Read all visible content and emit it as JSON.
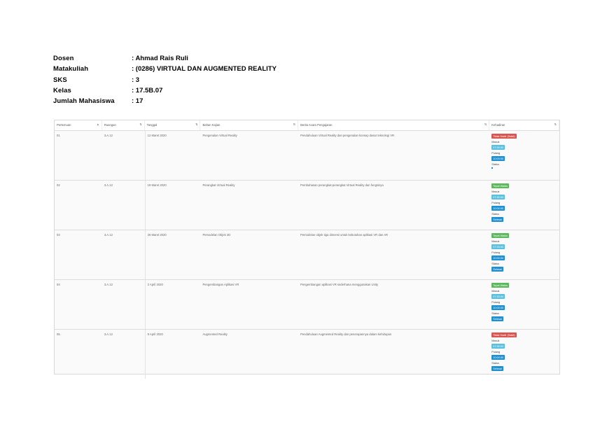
{
  "info": [
    {
      "label": "Dosen",
      "value": ": Ahmad Rais Ruli"
    },
    {
      "label": "Matakuliah",
      "value": ": (0286) VIRTUAL DAN AUGMENTED REALITY"
    },
    {
      "label": "SKS",
      "value": ": 3"
    },
    {
      "label": "Kelas",
      "value": ": 17.5B.07"
    },
    {
      "label": "Jumlah Mahasiswa",
      "value": ": 17"
    }
  ],
  "table": {
    "headers": [
      "Pertemuan",
      "Ruangan",
      "Tanggal",
      "Bahan Kajian",
      "Berita Acara Pengajaran",
      "Kehadiran"
    ],
    "sort_icon": "sort-icon",
    "rows": [
      {
        "no": "01",
        "ruang": "3.A.12",
        "tanggal": "12 Maret 2020",
        "bahan": "Pengenalan Virtual Reality",
        "berita": "Pendahuluan Virtual Reality dan pengenalan konsep dasar teknologi VR",
        "status": [
          {
            "type": "badge",
            "color": "red",
            "text": "Tidak Hadir (Sakit)"
          },
          {
            "type": "label",
            "text": "Masuk"
          },
          {
            "type": "badge",
            "color": "light",
            "text": "07:30:00"
          },
          {
            "type": "label",
            "text": "Pulang"
          },
          {
            "type": "badge",
            "color": "blue",
            "text": "10:00:00"
          },
          {
            "type": "label",
            "text": "Status"
          },
          {
            "type": "dot"
          }
        ]
      },
      {
        "no": "02",
        "ruang": "3.A.12",
        "tanggal": "19 Maret 2020",
        "bahan": "Perangkat Virtual Reality",
        "berita": "Pembahasan perangkat-perangkat Virtual Reality dan fungsinya",
        "status": [
          {
            "type": "badge",
            "color": "green",
            "text": "Tepat Waktu"
          },
          {
            "type": "label",
            "text": "Masuk"
          },
          {
            "type": "badge",
            "color": "light",
            "text": "07:30:00"
          },
          {
            "type": "label",
            "text": "Pulang"
          },
          {
            "type": "badge",
            "color": "blue",
            "text": "10:00:00"
          },
          {
            "type": "label",
            "text": "Status"
          },
          {
            "type": "badge",
            "color": "blue",
            "text": "Selesai"
          }
        ]
      },
      {
        "no": "03",
        "ruang": "3.A.12",
        "tanggal": "26 Maret 2020",
        "bahan": "Pemodelan Objek 3D",
        "berita": "Pemodelan objek tiga dimensi untuk kebutuhan aplikasi VR dan AR",
        "status": [
          {
            "type": "badge",
            "color": "green",
            "text": "Tepat Waktu"
          },
          {
            "type": "label",
            "text": "Masuk"
          },
          {
            "type": "badge",
            "color": "light",
            "text": "07:30:00"
          },
          {
            "type": "label",
            "text": "Pulang"
          },
          {
            "type": "badge",
            "color": "blue",
            "text": "10:00:00"
          },
          {
            "type": "label",
            "text": "Status"
          },
          {
            "type": "badge",
            "color": "blue",
            "text": "Selesai"
          }
        ]
      },
      {
        "no": "04",
        "ruang": "3.A.12",
        "tanggal": "2 April 2020",
        "bahan": "Pengembangan Aplikasi VR",
        "berita": "Pengembangan aplikasi VR sederhana menggunakan Unity",
        "status": [
          {
            "type": "badge",
            "color": "green",
            "text": "Tepat Waktu"
          },
          {
            "type": "label",
            "text": "Masuk"
          },
          {
            "type": "badge",
            "color": "light",
            "text": "07:30:00"
          },
          {
            "type": "label",
            "text": "Pulang"
          },
          {
            "type": "badge",
            "color": "blue",
            "text": "10:00:00"
          },
          {
            "type": "label",
            "text": "Status"
          },
          {
            "type": "badge",
            "color": "blue",
            "text": "Selesai"
          }
        ]
      },
      {
        "no": "05",
        "ruang": "3.A.12",
        "tanggal": "9 April 2020",
        "bahan": "Augmented Reality",
        "berita": "Pendahuluan Augmented Reality dan penerapannya dalam kehidupan",
        "status": [
          {
            "type": "badge",
            "color": "red",
            "text": "Tidak Hadir (Sakit)"
          },
          {
            "type": "label",
            "text": "Masuk"
          },
          {
            "type": "badge",
            "color": "light",
            "text": "07:30:00"
          },
          {
            "type": "label",
            "text": "Pulang"
          },
          {
            "type": "badge",
            "color": "blue",
            "text": "10:00:00"
          },
          {
            "type": "label",
            "text": "Status"
          },
          {
            "type": "badge",
            "color": "blue",
            "text": "Selesai"
          }
        ]
      }
    ]
  }
}
